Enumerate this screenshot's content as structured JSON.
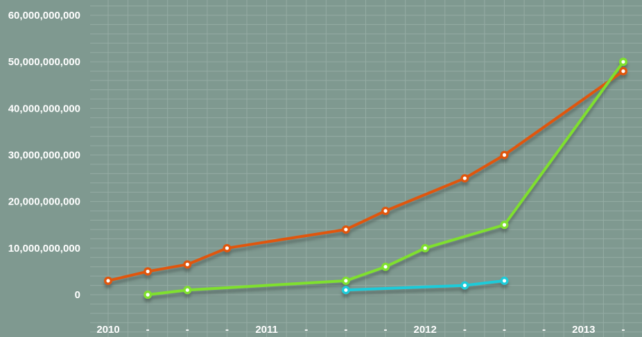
{
  "chart_data": {
    "type": "line",
    "categories": [
      "2010",
      "-",
      "-",
      "-",
      "2011",
      "-",
      "-",
      "-",
      "2012",
      "-",
      "-",
      "-",
      "2013",
      "-"
    ],
    "series": [
      {
        "color": "#e0560f",
        "values": [
          3000000000,
          5000000000,
          6500000000,
          10000000000,
          null,
          null,
          14000000000,
          18000000000,
          null,
          25000000000,
          30000000000,
          null,
          null,
          48000000000
        ]
      },
      {
        "color": "#7fe02f",
        "values": [
          null,
          0,
          1000000000,
          null,
          null,
          null,
          3000000000,
          6000000000,
          10000000000,
          null,
          15000000000,
          null,
          null,
          50000000000
        ]
      },
      {
        "color": "#1ecbd9",
        "values": [
          null,
          null,
          null,
          null,
          null,
          null,
          1000000000,
          null,
          null,
          2000000000,
          3000000000,
          null,
          null,
          null
        ]
      }
    ],
    "yticks": [
      "60,000,000,000",
      "50,000,000,000",
      "40,000,000,000",
      "30,000,000,000",
      "20,000,000,000",
      "10,000,000,000",
      "0"
    ],
    "ylim": [
      0,
      60000000000
    ],
    "grid": true,
    "title": "",
    "xlabel": "",
    "ylabel": ""
  }
}
